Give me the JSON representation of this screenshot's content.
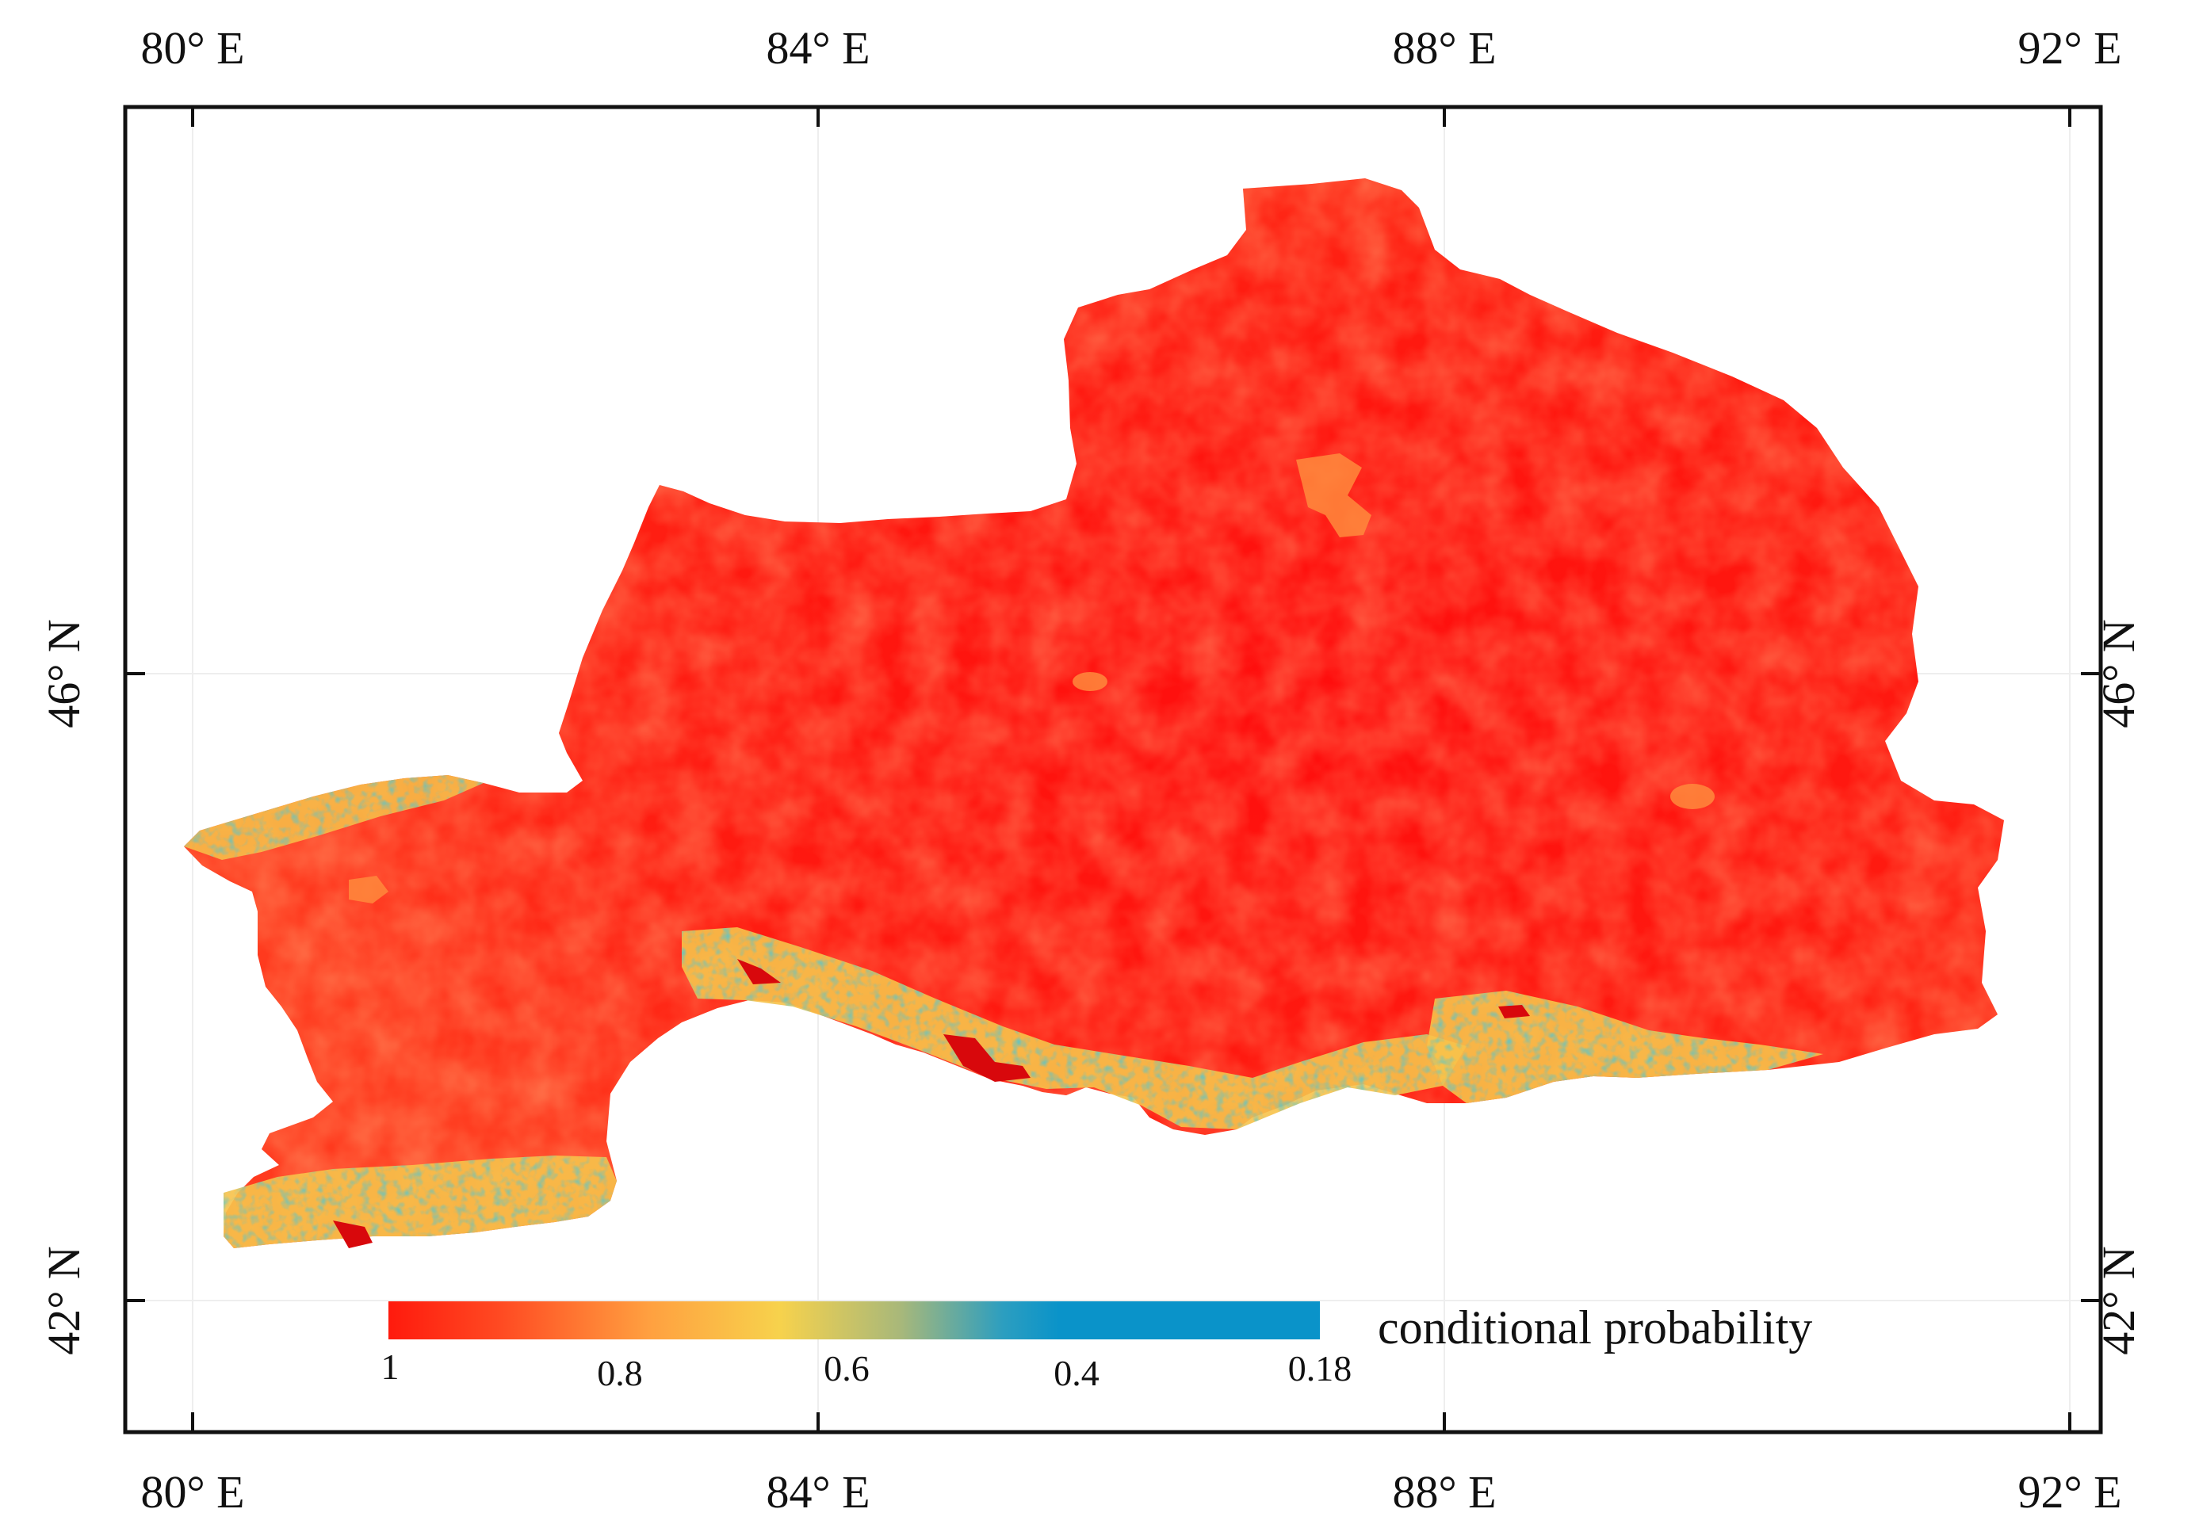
{
  "map": {
    "top_lon_labels": [
      "80° E",
      "84° E",
      "88° E",
      "92° E"
    ],
    "bottom_lon_labels": [
      "80° E",
      "84° E",
      "88° E",
      "92° E"
    ],
    "left_lat_labels": [
      "46° N",
      "42° N"
    ],
    "right_lat_labels": [
      "46° N",
      "42° N"
    ],
    "longitudes": [
      80,
      84,
      88,
      92
    ],
    "latitudes": [
      46,
      42
    ],
    "colors": {
      "high": "#ff1a0d",
      "mid_orange": "#ff6a2e",
      "yellow": "#f7d24c",
      "low": "#0a93c9",
      "frame": "#111111"
    }
  },
  "legend": {
    "title": "conditional probability",
    "tick_labels": [
      "1",
      "0.8",
      "0.6",
      "0.4",
      "0.18"
    ],
    "tick_values": [
      1,
      0.8,
      0.6,
      0.4,
      0.18
    ]
  }
}
